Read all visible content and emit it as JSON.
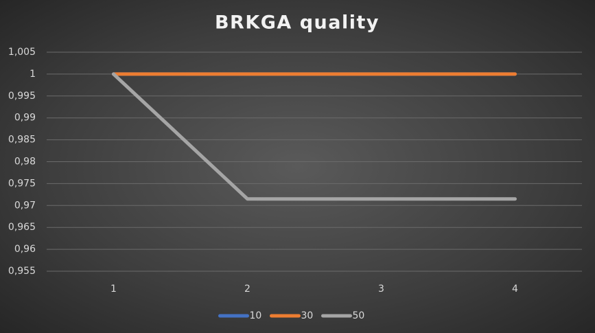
{
  "chart_data": {
    "type": "line",
    "title": "BRKGA quality",
    "categories": [
      "1",
      "2",
      "3",
      "4"
    ],
    "series": [
      {
        "name": "10",
        "color": "#4472c4",
        "values": [
          1,
          1,
          1,
          1
        ]
      },
      {
        "name": "30",
        "color": "#ed7d31",
        "values": [
          1,
          1,
          1,
          1
        ]
      },
      {
        "name": "50",
        "color": "#a5a5a5",
        "values": [
          1,
          0.9715,
          0.9715,
          0.9715
        ]
      }
    ],
    "ylim": [
      0.955,
      1.005
    ],
    "yticks": [
      {
        "value": 0.955,
        "label": "0,955"
      },
      {
        "value": 0.96,
        "label": "0,96"
      },
      {
        "value": 0.965,
        "label": "0,965"
      },
      {
        "value": 0.97,
        "label": "0,97"
      },
      {
        "value": 0.975,
        "label": "0,975"
      },
      {
        "value": 0.98,
        "label": "0,98"
      },
      {
        "value": 0.985,
        "label": "0,985"
      },
      {
        "value": 0.99,
        "label": "0,99"
      },
      {
        "value": 0.995,
        "label": "0,995"
      },
      1,
      {
        "value": 1.005,
        "label": "1,005"
      }
    ],
    "grid": true,
    "legend": "bottom"
  }
}
